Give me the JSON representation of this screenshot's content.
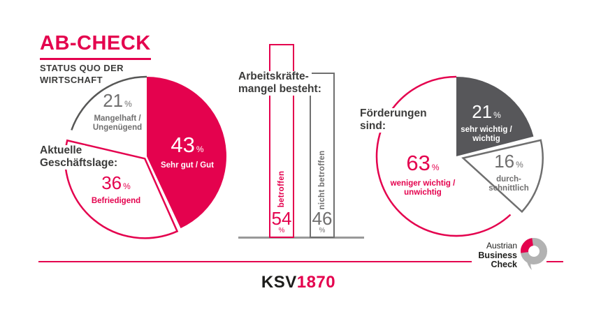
{
  "header": {
    "title": "AB-CHECK",
    "subtitle_lines": [
      "STATUS QUO DER",
      "WIRTSCHAFT"
    ]
  },
  "units": {
    "percent": "%"
  },
  "colors": {
    "pink": "#E4024E",
    "dark_gray_fill": "#57575A",
    "stroke_gray": "#6F6F6F",
    "arc_gray": "#575756",
    "text_dark": "#3C3C3B",
    "text_gray": "#706F6F",
    "baseline_gray": "#999999",
    "logo_gray": "#B2B2B2",
    "white": "#FFFFFF"
  },
  "chart_data": [
    {
      "type": "pie",
      "title": "Aktuelle Geschäftslage:",
      "title_lines": [
        "Aktuelle",
        "Geschäftslage:"
      ],
      "legend_position": "labels-inside",
      "segments": [
        {
          "label": "Sehr gut / Gut",
          "value": 43,
          "display": "43",
          "unit": "%",
          "style": "filled",
          "color": "#E4024E",
          "text_color": "#FFFFFF"
        },
        {
          "label": "Befriedigend",
          "value": 36,
          "display": "36",
          "unit": "%",
          "style": "outline",
          "color": "#E4024E",
          "text_color": "#E4024E"
        },
        {
          "label": "Mangelhaft / Ungenügend",
          "label_lines": [
            "Mangelhaft /",
            "Ungenügend"
          ],
          "value": 21,
          "display": "21",
          "unit": "%",
          "style": "outline",
          "color": "#575756",
          "text_color": "#706F6F"
        }
      ]
    },
    {
      "type": "bar",
      "title": "Arbeitskräftemangel besteht:",
      "title_lines": [
        "Arbeitskräfte-",
        "mangel besteht:"
      ],
      "ylim": [
        0,
        60
      ],
      "grid": false,
      "bars": [
        {
          "label": "betroffen",
          "value": 54,
          "display": "54",
          "unit": "%",
          "style": "outline",
          "color": "#E4024E"
        },
        {
          "label": "nicht betroffen",
          "value": 46,
          "display": "46",
          "unit": "%",
          "style": "outline",
          "color": "#6F6F6F"
        }
      ]
    },
    {
      "type": "pie",
      "title": "Förderungen sind:",
      "title_lines": [
        "Förderungen",
        "sind:"
      ],
      "legend_position": "labels-inside",
      "segments": [
        {
          "label": "sehr wichtig / wichtig",
          "label_lines": [
            "sehr wichtig /",
            "wichtig"
          ],
          "value": 21,
          "display": "21",
          "unit": "%",
          "style": "filled",
          "color": "#57575A",
          "text_color": "#FFFFFF"
        },
        {
          "label": "durchschnittlich",
          "label_lines": [
            "durch-",
            "schnittlich"
          ],
          "value": 16,
          "display": "16",
          "unit": "%",
          "style": "outline",
          "color": "#6F6F6F",
          "text_color": "#706F6F"
        },
        {
          "label": "weniger wichtig / unwichtig",
          "label_lines": [
            "weniger wichtig /",
            "unwichtig"
          ],
          "value": 63,
          "display": "63",
          "unit": "%",
          "style": "outline",
          "color": "#E4024E",
          "text_color": "#E4024E"
        }
      ]
    }
  ],
  "footer": {
    "ksv": {
      "black": "KSV",
      "pink": "1870"
    },
    "abc_lines": [
      "Austrian",
      "Business",
      "Check"
    ]
  }
}
